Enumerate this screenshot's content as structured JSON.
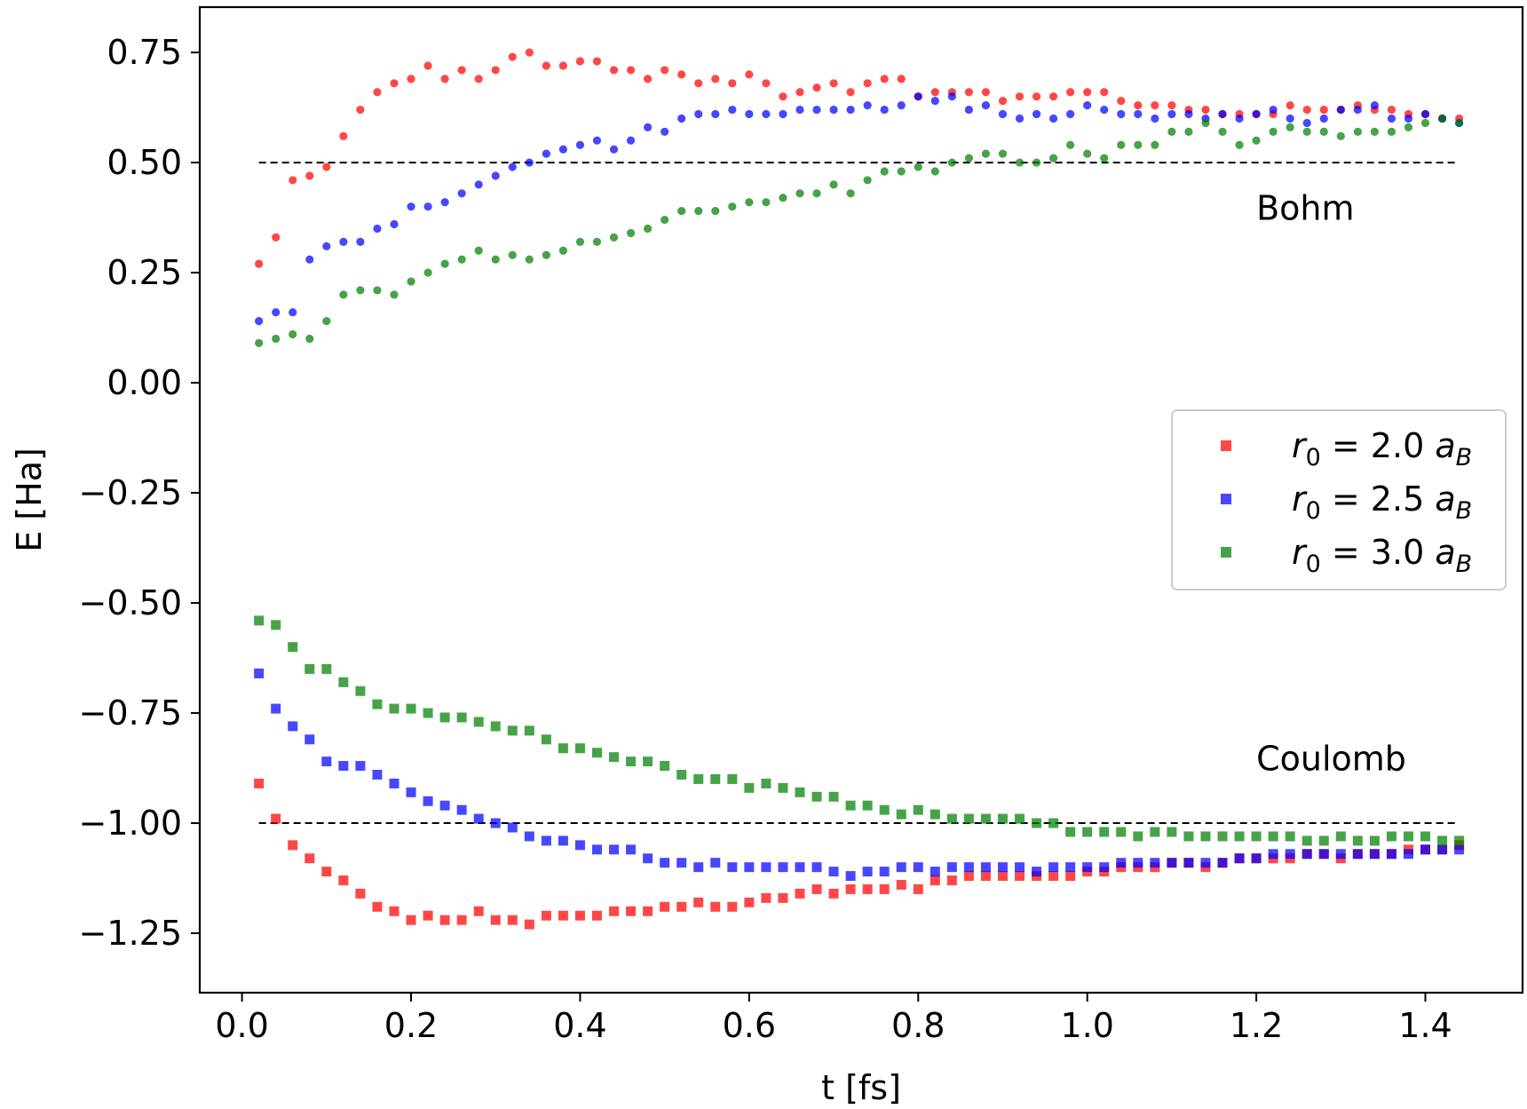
{
  "chart_data": {
    "type": "scatter",
    "xlabel": "t [fs]",
    "ylabel": "E [Ha]",
    "xlim": [
      -0.05,
      1.515
    ],
    "ylim": [
      -1.385,
      0.853
    ],
    "xticks": [
      0.0,
      0.2,
      0.4,
      0.6,
      0.8,
      1.0,
      1.2,
      1.4
    ],
    "xtick_labels": [
      "0.0",
      "0.2",
      "0.4",
      "0.6",
      "0.8",
      "1.0",
      "1.2",
      "1.4"
    ],
    "yticks": [
      0.75,
      0.5,
      0.25,
      0.0,
      -0.25,
      -0.5,
      -0.75,
      -1.0,
      -1.25
    ],
    "ytick_labels": [
      "0.75",
      "0.50",
      "0.25",
      "0.00",
      "−0.25",
      "−0.50",
      "−0.75",
      "−1.00",
      "−1.25"
    ],
    "grid": false,
    "legend_position": "center-right",
    "reference_lines": [
      {
        "y": 0.5,
        "x_range": [
          0.02,
          1.44
        ],
        "style": "dashed",
        "color": "#000000"
      },
      {
        "y": -1.0,
        "x_range": [
          0.02,
          1.44
        ],
        "style": "dashed",
        "color": "#000000"
      }
    ],
    "annotations": [
      {
        "text": "Bohm",
        "x": 1.2,
        "y": 0.37
      },
      {
        "text": "Coulomb",
        "x": 1.2,
        "y": -0.88
      }
    ],
    "x": [
      0.02,
      0.04,
      0.06,
      0.08,
      0.1,
      0.12,
      0.14,
      0.16,
      0.18,
      0.2,
      0.22,
      0.24,
      0.26,
      0.28,
      0.3,
      0.32,
      0.34,
      0.36,
      0.38,
      0.4,
      0.42,
      0.44,
      0.46,
      0.48,
      0.5,
      0.52,
      0.54,
      0.56,
      0.58,
      0.6,
      0.62,
      0.64,
      0.66,
      0.68,
      0.7,
      0.72,
      0.74,
      0.76,
      0.78,
      0.8,
      0.82,
      0.84,
      0.86,
      0.88,
      0.9,
      0.92,
      0.94,
      0.96,
      0.98,
      1.0,
      1.02,
      1.04,
      1.06,
      1.08,
      1.1,
      1.12,
      1.14,
      1.16,
      1.18,
      1.2,
      1.22,
      1.24,
      1.26,
      1.28,
      1.3,
      1.32,
      1.34,
      1.36,
      1.38,
      1.4,
      1.42,
      1.44
    ],
    "series": [
      {
        "name": "r0 = 2.0 aB",
        "legend_label": {
          "base": "r",
          "sub": "0",
          "eq": " = 2.0 ",
          "var": "a",
          "var_sub": "B"
        },
        "color": "#ff0000",
        "bohm": [
          0.27,
          0.33,
          0.46,
          0.47,
          0.49,
          0.56,
          0.62,
          0.66,
          0.68,
          0.69,
          0.72,
          0.69,
          0.71,
          0.69,
          0.71,
          0.74,
          0.75,
          0.72,
          0.72,
          0.73,
          0.73,
          0.71,
          0.71,
          0.69,
          0.71,
          0.7,
          0.68,
          0.69,
          0.68,
          0.7,
          0.68,
          0.65,
          0.66,
          0.67,
          0.68,
          0.66,
          0.68,
          0.69,
          0.69,
          0.65,
          0.66,
          0.66,
          0.66,
          0.66,
          0.64,
          0.65,
          0.65,
          0.65,
          0.66,
          0.66,
          0.66,
          0.64,
          0.63,
          0.63,
          0.63,
          0.62,
          0.62,
          0.61,
          0.61,
          0.61,
          0.61,
          0.63,
          0.62,
          0.62,
          0.62,
          0.63,
          0.62,
          0.62,
          0.61,
          0.61,
          0.6,
          0.6
        ],
        "coulomb": [
          -0.91,
          -0.99,
          -1.05,
          -1.08,
          -1.11,
          -1.13,
          -1.16,
          -1.19,
          -1.2,
          -1.22,
          -1.21,
          -1.22,
          -1.22,
          -1.2,
          -1.22,
          -1.22,
          -1.23,
          -1.21,
          -1.21,
          -1.21,
          -1.21,
          -1.2,
          -1.2,
          -1.2,
          -1.19,
          -1.19,
          -1.18,
          -1.19,
          -1.19,
          -1.18,
          -1.17,
          -1.17,
          -1.16,
          -1.15,
          -1.16,
          -1.15,
          -1.15,
          -1.15,
          -1.14,
          -1.15,
          -1.13,
          -1.13,
          -1.12,
          -1.12,
          -1.12,
          -1.12,
          -1.12,
          -1.12,
          -1.12,
          -1.11,
          -1.11,
          -1.1,
          -1.1,
          -1.1,
          -1.09,
          -1.09,
          -1.1,
          -1.09,
          -1.08,
          -1.08,
          -1.08,
          -1.08,
          -1.07,
          -1.07,
          -1.08,
          -1.07,
          -1.07,
          -1.07,
          -1.06,
          -1.06,
          -1.06,
          -1.05
        ]
      },
      {
        "name": "r0 = 2.5 aB",
        "legend_label": {
          "base": "r",
          "sub": "0",
          "eq": " = 2.5 ",
          "var": "a",
          "var_sub": "B"
        },
        "color": "#0000ff",
        "bohm": [
          0.14,
          0.16,
          0.16,
          0.28,
          0.31,
          0.32,
          0.32,
          0.35,
          0.36,
          0.4,
          0.4,
          0.41,
          0.43,
          0.45,
          0.47,
          0.49,
          0.5,
          0.52,
          0.53,
          0.54,
          0.55,
          0.53,
          0.55,
          0.58,
          0.57,
          0.6,
          0.61,
          0.61,
          0.62,
          0.61,
          0.61,
          0.61,
          0.62,
          0.62,
          0.62,
          0.62,
          0.63,
          0.62,
          0.63,
          0.65,
          0.64,
          0.65,
          0.62,
          0.63,
          0.61,
          0.6,
          0.61,
          0.6,
          0.61,
          0.63,
          0.62,
          0.61,
          0.61,
          0.6,
          0.61,
          0.61,
          0.6,
          0.61,
          0.6,
          0.61,
          0.62,
          0.6,
          0.59,
          0.6,
          0.62,
          0.62,
          0.63,
          0.6,
          0.6,
          0.61,
          0.6,
          0.59
        ],
        "coulomb": [
          -0.66,
          -0.74,
          -0.78,
          -0.81,
          -0.86,
          -0.87,
          -0.87,
          -0.89,
          -0.91,
          -0.93,
          -0.95,
          -0.96,
          -0.97,
          -0.99,
          -1.0,
          -1.01,
          -1.03,
          -1.04,
          -1.04,
          -1.05,
          -1.06,
          -1.06,
          -1.06,
          -1.08,
          -1.09,
          -1.09,
          -1.1,
          -1.09,
          -1.1,
          -1.1,
          -1.1,
          -1.1,
          -1.1,
          -1.1,
          -1.11,
          -1.12,
          -1.11,
          -1.11,
          -1.1,
          -1.1,
          -1.11,
          -1.1,
          -1.1,
          -1.1,
          -1.1,
          -1.1,
          -1.11,
          -1.1,
          -1.1,
          -1.1,
          -1.1,
          -1.09,
          -1.09,
          -1.09,
          -1.09,
          -1.09,
          -1.09,
          -1.09,
          -1.08,
          -1.08,
          -1.07,
          -1.07,
          -1.07,
          -1.07,
          -1.07,
          -1.07,
          -1.07,
          -1.07,
          -1.07,
          -1.06,
          -1.06,
          -1.06
        ]
      },
      {
        "name": "r0 = 3.0 aB",
        "legend_label": {
          "base": "r",
          "sub": "0",
          "eq": " = 3.0 ",
          "var": "a",
          "var_sub": "B"
        },
        "color": "#008000",
        "bohm": [
          0.09,
          0.1,
          0.11,
          0.1,
          0.14,
          0.2,
          0.21,
          0.21,
          0.2,
          0.23,
          0.25,
          0.27,
          0.28,
          0.3,
          0.28,
          0.29,
          0.28,
          0.29,
          0.3,
          0.32,
          0.32,
          0.33,
          0.34,
          0.35,
          0.37,
          0.39,
          0.39,
          0.39,
          0.4,
          0.41,
          0.41,
          0.42,
          0.43,
          0.43,
          0.45,
          0.43,
          0.46,
          0.48,
          0.48,
          0.49,
          0.48,
          0.5,
          0.51,
          0.52,
          0.52,
          0.5,
          0.5,
          0.51,
          0.54,
          0.52,
          0.51,
          0.54,
          0.54,
          0.54,
          0.57,
          0.57,
          0.59,
          0.57,
          0.54,
          0.55,
          0.57,
          0.58,
          0.57,
          0.57,
          0.56,
          0.57,
          0.57,
          0.57,
          0.58,
          0.59,
          0.6,
          0.59
        ],
        "coulomb": [
          -0.54,
          -0.55,
          -0.6,
          -0.65,
          -0.65,
          -0.68,
          -0.7,
          -0.73,
          -0.74,
          -0.74,
          -0.75,
          -0.76,
          -0.76,
          -0.77,
          -0.78,
          -0.79,
          -0.79,
          -0.81,
          -0.83,
          -0.83,
          -0.84,
          -0.85,
          -0.86,
          -0.86,
          -0.87,
          -0.89,
          -0.9,
          -0.9,
          -0.9,
          -0.92,
          -0.91,
          -0.92,
          -0.93,
          -0.94,
          -0.94,
          -0.96,
          -0.96,
          -0.97,
          -0.98,
          -0.97,
          -0.98,
          -0.99,
          -0.99,
          -0.99,
          -0.99,
          -0.99,
          -1.0,
          -1.0,
          -1.02,
          -1.02,
          -1.02,
          -1.02,
          -1.03,
          -1.02,
          -1.02,
          -1.03,
          -1.03,
          -1.03,
          -1.03,
          -1.03,
          -1.03,
          -1.03,
          -1.04,
          -1.04,
          -1.03,
          -1.04,
          -1.04,
          -1.03,
          -1.03,
          -1.03,
          -1.04,
          -1.04
        ]
      }
    ]
  }
}
